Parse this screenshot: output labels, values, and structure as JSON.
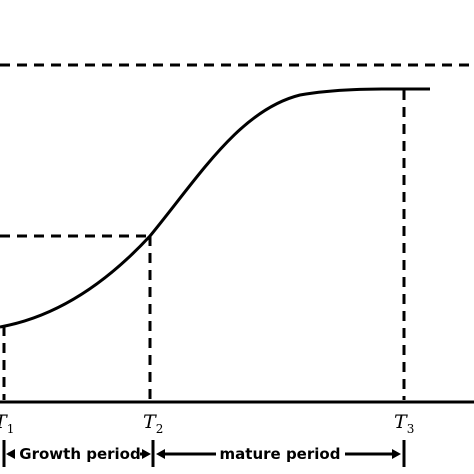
{
  "ticks": {
    "t1": {
      "base": "T",
      "sub": "1"
    },
    "t2": {
      "base": "T",
      "sub": "2"
    },
    "t3": {
      "base": "T",
      "sub": "3"
    }
  },
  "periods": {
    "growth": "Growth period",
    "mature": "mature period"
  }
}
